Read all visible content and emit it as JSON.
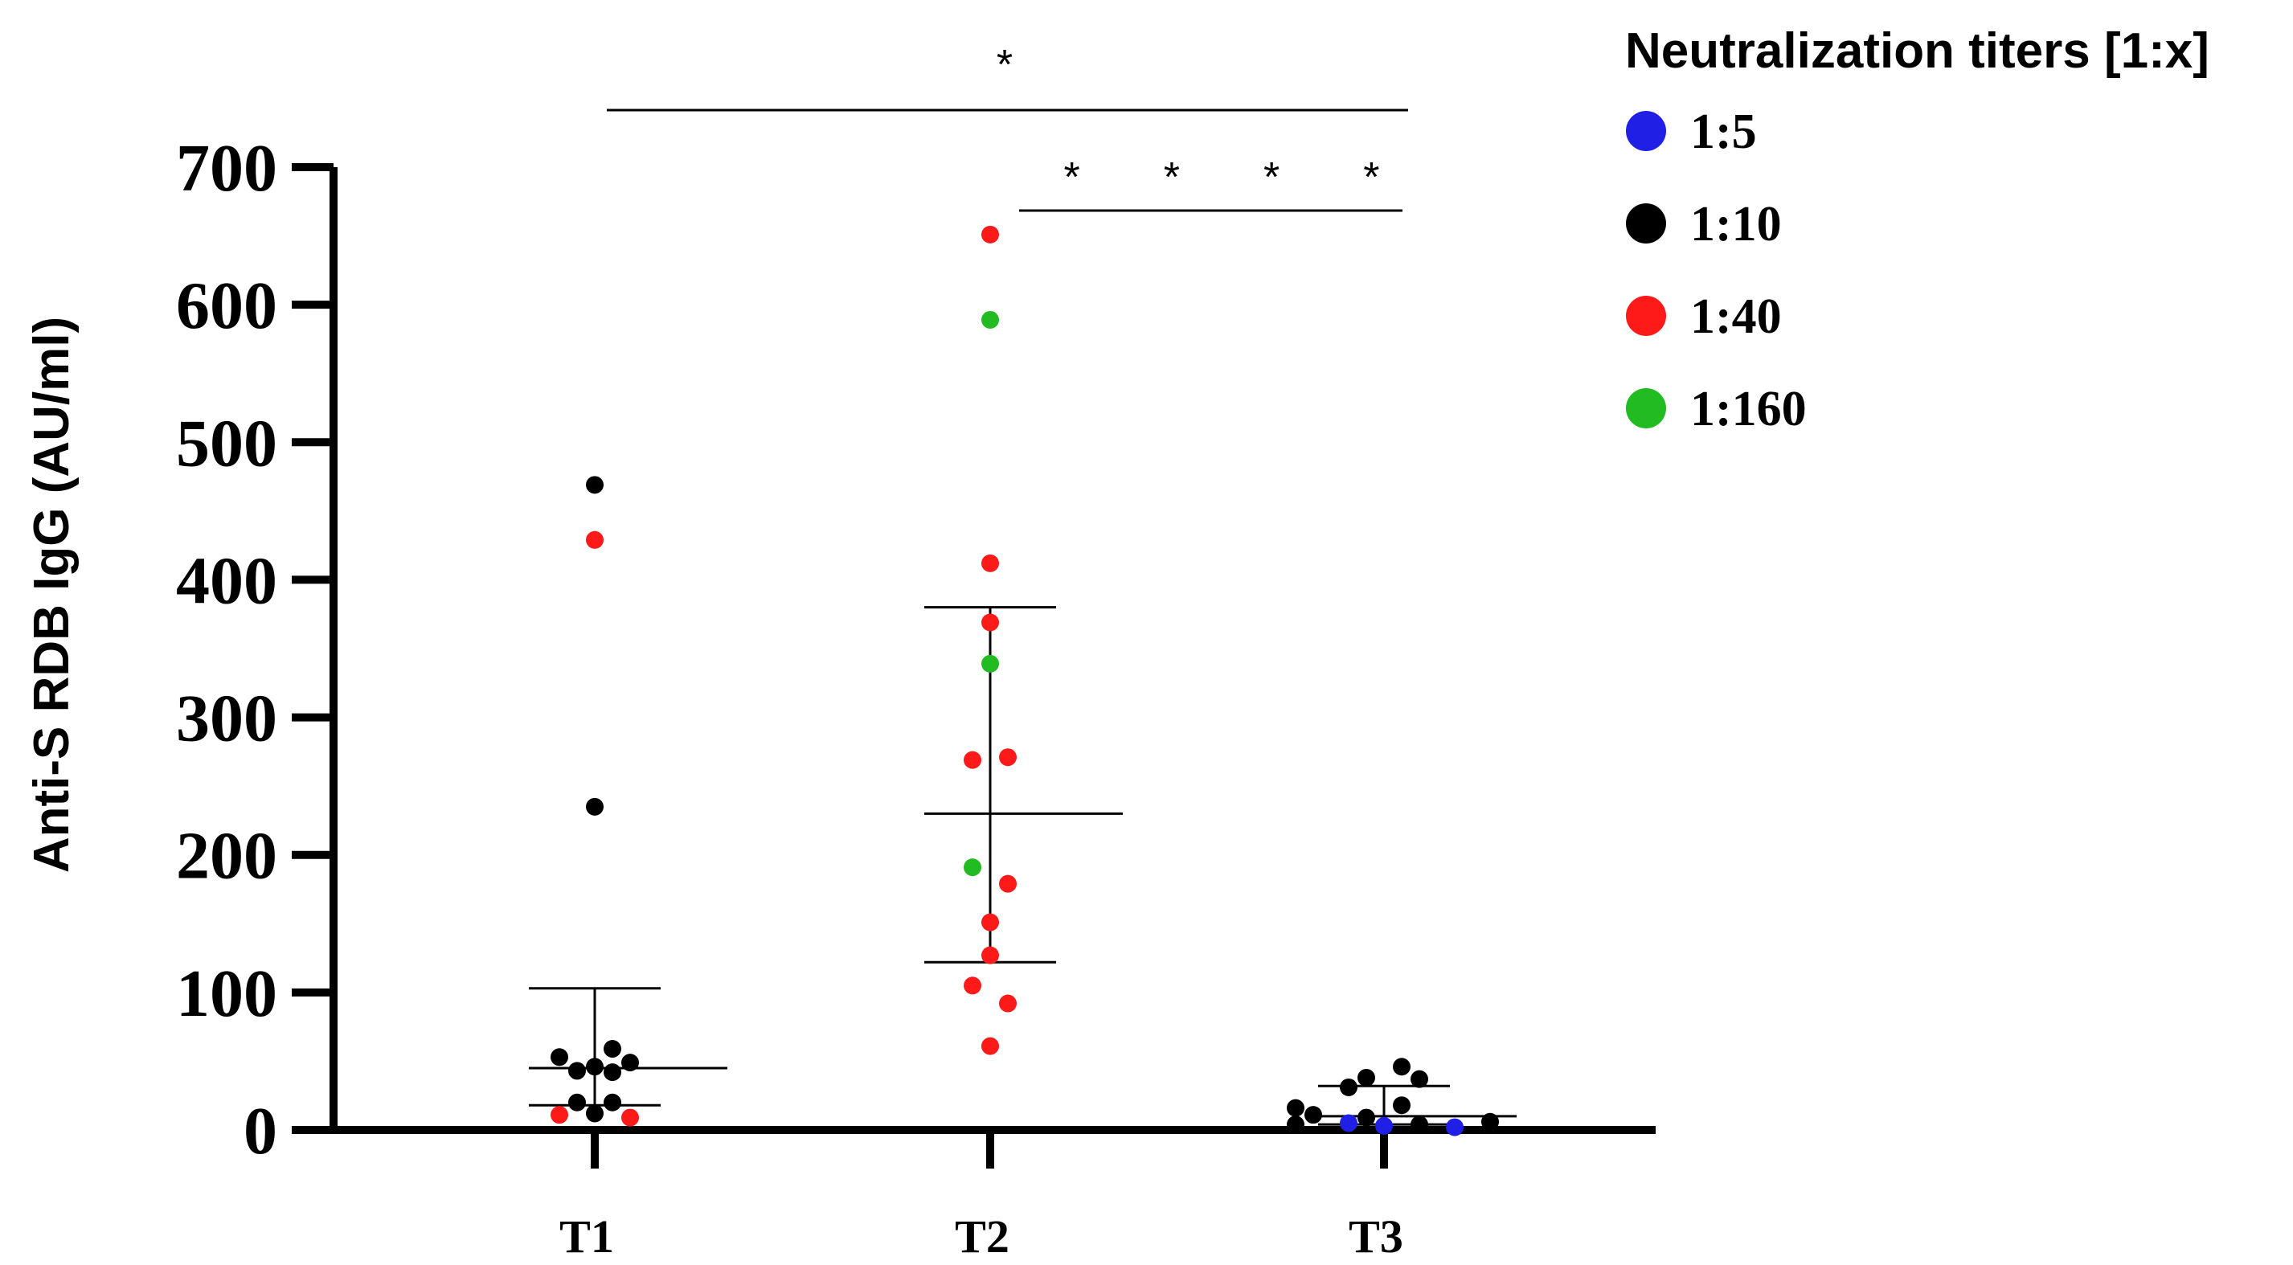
{
  "chart_data": {
    "type": "scatter",
    "subtype": "dot-plot-with-median-iqr",
    "title": "",
    "ylabel": "Anti-S RDB IgG (AU/ml)",
    "xlabel": "",
    "ylim": [
      0,
      700
    ],
    "yticks": [
      0,
      100,
      200,
      300,
      400,
      500,
      600,
      700
    ],
    "categories": [
      "T1",
      "T2",
      "T3"
    ],
    "legend": {
      "title": "Neutralization titers [1:x]",
      "position": "top-right",
      "items": [
        {
          "label": "1:5",
          "key": "1:5",
          "color": "#1f1fe6"
        },
        {
          "label": "1:10",
          "key": "1:10",
          "color": "#000000"
        },
        {
          "label": "1:40",
          "key": "1:40",
          "color": "#ff1a1a"
        },
        {
          "label": "1:160",
          "key": "1:160",
          "color": "#22bb22"
        }
      ]
    },
    "groups": [
      {
        "name": "T1",
        "summary": {
          "median": 45,
          "q1": 18,
          "q3": 103
        },
        "points": [
          {
            "offset": 0,
            "value": 469,
            "titer": "1:10"
          },
          {
            "offset": 0,
            "value": 429,
            "titer": "1:40"
          },
          {
            "offset": 0,
            "value": 235,
            "titer": "1:10"
          },
          {
            "offset": -2,
            "value": 53,
            "titer": "1:10"
          },
          {
            "offset": -1,
            "value": 43,
            "titer": "1:10"
          },
          {
            "offset": 0,
            "value": 46,
            "titer": "1:10"
          },
          {
            "offset": 1,
            "value": 42,
            "titer": "1:10"
          },
          {
            "offset": 1,
            "value": 59,
            "titer": "1:10"
          },
          {
            "offset": 2,
            "value": 49,
            "titer": "1:10"
          },
          {
            "offset": -1,
            "value": 20,
            "titer": "1:10"
          },
          {
            "offset": 1,
            "value": 20,
            "titer": "1:10"
          },
          {
            "offset": 0,
            "value": 12,
            "titer": "1:10"
          },
          {
            "offset": -2,
            "value": 11,
            "titer": "1:40"
          },
          {
            "offset": 2,
            "value": 9,
            "titer": "1:40"
          }
        ]
      },
      {
        "name": "T2",
        "summary": {
          "median": 230,
          "q1": 122,
          "q3": 380
        },
        "points": [
          {
            "offset": 0,
            "value": 651,
            "titer": "1:40"
          },
          {
            "offset": 0,
            "value": 589,
            "titer": "1:160"
          },
          {
            "offset": 0,
            "value": 412,
            "titer": "1:40"
          },
          {
            "offset": 0,
            "value": 369,
            "titer": "1:40"
          },
          {
            "offset": 0,
            "value": 339,
            "titer": "1:160"
          },
          {
            "offset": -1,
            "value": 269,
            "titer": "1:40"
          },
          {
            "offset": 1,
            "value": 271,
            "titer": "1:40"
          },
          {
            "offset": -1,
            "value": 191,
            "titer": "1:160"
          },
          {
            "offset": 1,
            "value": 179,
            "titer": "1:40"
          },
          {
            "offset": 0,
            "value": 151,
            "titer": "1:40"
          },
          {
            "offset": 0,
            "value": 127,
            "titer": "1:40"
          },
          {
            "offset": -1,
            "value": 105,
            "titer": "1:40"
          },
          {
            "offset": 1,
            "value": 92,
            "titer": "1:40"
          },
          {
            "offset": 0,
            "value": 61,
            "titer": "1:40"
          }
        ]
      },
      {
        "name": "T3",
        "summary": {
          "median": 10,
          "q1": 4,
          "q3": 32
        },
        "points": [
          {
            "offset": 1,
            "value": 46,
            "titer": "1:10"
          },
          {
            "offset": 2,
            "value": 37,
            "titer": "1:10"
          },
          {
            "offset": -1,
            "value": 38,
            "titer": "1:10"
          },
          {
            "offset": -2,
            "value": 31,
            "titer": "1:10"
          },
          {
            "offset": -5,
            "value": 16,
            "titer": "1:10"
          },
          {
            "offset": 1,
            "value": 18,
            "titer": "1:10"
          },
          {
            "offset": -4,
            "value": 11,
            "titer": "1:10"
          },
          {
            "offset": -1,
            "value": 9,
            "titer": "1:10"
          },
          {
            "offset": -5,
            "value": 4,
            "titer": "1:10"
          },
          {
            "offset": -2,
            "value": 5,
            "titer": "1:5"
          },
          {
            "offset": 0,
            "value": 3,
            "titer": "1:5"
          },
          {
            "offset": 2,
            "value": 4,
            "titer": "1:10"
          },
          {
            "offset": 4,
            "value": 2,
            "titer": "1:5"
          },
          {
            "offset": 6,
            "value": 6,
            "titer": "1:10"
          }
        ]
      }
    ],
    "significance": [
      {
        "from": "T1",
        "to": "T3",
        "label": "*"
      },
      {
        "from": "T2",
        "to": "T3",
        "label": "* * * *"
      }
    ]
  }
}
